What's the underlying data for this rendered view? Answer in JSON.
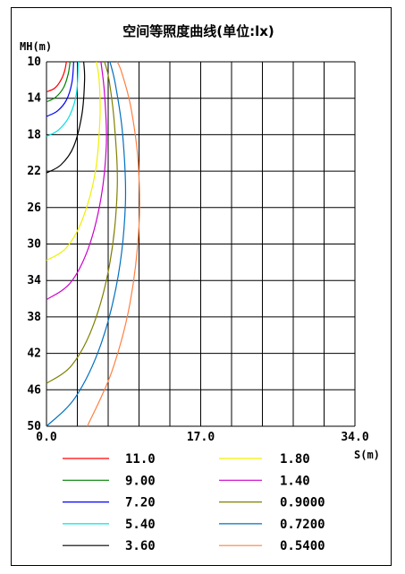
{
  "chart_data": {
    "type": "line",
    "title": "空间等照度曲线(单位:lx)",
    "xlabel": "S(m)",
    "ylabel": "MH(m)",
    "xlim": [
      0,
      34
    ],
    "ylim": [
      10,
      50
    ],
    "y_inverted": true,
    "grid": true,
    "x_ticks": [
      "0.0",
      "17.0",
      "34.0"
    ],
    "y_ticks": [
      "10",
      "14",
      "18",
      "22",
      "26",
      "30",
      "34",
      "38",
      "42",
      "46",
      "50"
    ],
    "legend_position": "bottom",
    "series": [
      {
        "name": "11.0",
        "color": "#ff0000",
        "points": [
          [
            0,
            13.3
          ],
          [
            0.9,
            12.9
          ],
          [
            1.6,
            12.0
          ],
          [
            2.0,
            11.0
          ],
          [
            2.2,
            10.0
          ]
        ]
      },
      {
        "name": "9.00",
        "color": "#008000",
        "points": [
          [
            0,
            14.4
          ],
          [
            1.0,
            13.9
          ],
          [
            1.9,
            12.8
          ],
          [
            2.4,
            11.3
          ],
          [
            2.6,
            10.0
          ]
        ]
      },
      {
        "name": "7.20",
        "color": "#0000ff",
        "points": [
          [
            0,
            16.0
          ],
          [
            1.2,
            15.4
          ],
          [
            2.2,
            14.2
          ],
          [
            2.8,
            12.3
          ],
          [
            3.0,
            10.0
          ]
        ]
      },
      {
        "name": "5.40",
        "color": "#00e0e0",
        "points": [
          [
            0,
            18.2
          ],
          [
            1.3,
            17.5
          ],
          [
            2.5,
            16.0
          ],
          [
            3.3,
            13.5
          ],
          [
            3.5,
            10.0
          ]
        ]
      },
      {
        "name": "3.60",
        "color": "#000000",
        "points": [
          [
            0,
            22.2
          ],
          [
            1.6,
            21.3
          ],
          [
            3.0,
            19.3
          ],
          [
            3.9,
            15.8
          ],
          [
            4.2,
            12.0
          ],
          [
            4.1,
            10.0
          ]
        ]
      },
      {
        "name": "1.80",
        "color": "#f0f000",
        "points": [
          [
            0,
            31.8
          ],
          [
            2.2,
            30.4
          ],
          [
            4.0,
            27.2
          ],
          [
            5.4,
            22.0
          ],
          [
            5.9,
            16.0
          ],
          [
            5.8,
            12.0
          ],
          [
            5.5,
            10.0
          ]
        ]
      },
      {
        "name": "1.40",
        "color": "#cc00cc",
        "points": [
          [
            0,
            36.1
          ],
          [
            2.6,
            34.3
          ],
          [
            4.6,
            30.5
          ],
          [
            6.0,
            25.0
          ],
          [
            6.6,
            19.0
          ],
          [
            6.4,
            13.5
          ],
          [
            6.0,
            10.0
          ]
        ]
      },
      {
        "name": "0.9000",
        "color": "#808000",
        "points": [
          [
            0,
            45.3
          ],
          [
            2.8,
            43.3
          ],
          [
            5.2,
            38.8
          ],
          [
            7.0,
            32.0
          ],
          [
            7.8,
            24.0
          ],
          [
            7.5,
            17.0
          ],
          [
            6.9,
            12.0
          ],
          [
            6.4,
            10.0
          ]
        ]
      },
      {
        "name": "0.7200",
        "color": "#0070c0",
        "points": [
          [
            0,
            50.0
          ],
          [
            3.2,
            46.8
          ],
          [
            6.0,
            41.0
          ],
          [
            7.9,
            33.5
          ],
          [
            8.7,
            25.5
          ],
          [
            8.4,
            18.0
          ],
          [
            7.6,
            12.5
          ],
          [
            7.0,
            10.0
          ]
        ]
      },
      {
        "name": "0.5400",
        "color": "#ff8040",
        "points": [
          [
            4.5,
            50.0
          ],
          [
            7.2,
            44.0
          ],
          [
            9.2,
            36.5
          ],
          [
            10.2,
            28.0
          ],
          [
            10.1,
            21.0
          ],
          [
            9.3,
            15.0
          ],
          [
            8.3,
            11.2
          ],
          [
            7.8,
            10.0
          ]
        ]
      }
    ]
  }
}
